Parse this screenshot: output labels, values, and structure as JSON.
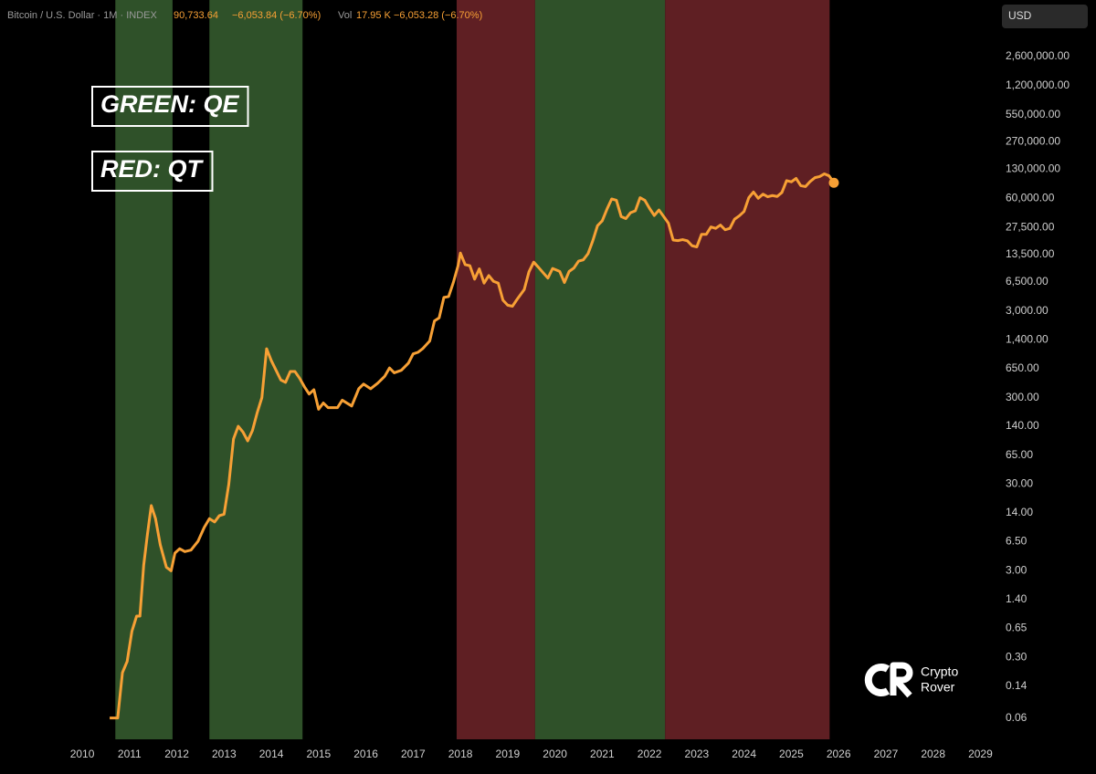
{
  "header": {
    "symbol": "Bitcoin / U.S. Dollar · 1M · INDEX",
    "price": "90,733.64",
    "change": "−6,053.84 (−6.70%)",
    "vol_label": "Vol",
    "vol": "17.95 K",
    "vol_change": "−6,053.28 (−6.70%)",
    "currency": "USD"
  },
  "logo": {
    "line1": "Crypto",
    "line2": "Rover"
  },
  "chart_data": {
    "type": "line",
    "log_scale": true,
    "grid": false,
    "annotations": [
      "GREEN: QE",
      "RED: QT"
    ],
    "regions": [
      {
        "start": 2010.7,
        "end": 2011.91,
        "color": "#2f5129"
      },
      {
        "start": 2012.69,
        "end": 2014.66,
        "color": "#2f5129"
      },
      {
        "start": 2017.92,
        "end": 2019.58,
        "color": "#5f1f23"
      },
      {
        "start": 2019.58,
        "end": 2022.33,
        "color": "#2f5129"
      },
      {
        "start": 2022.33,
        "end": 2025.81,
        "color": "#5f1f23"
      }
    ],
    "xlim": [
      2008.26,
      2029.32
    ],
    "xticks": [
      2010,
      2011,
      2012,
      2013,
      2014,
      2015,
      2016,
      2017,
      2018,
      2019,
      2020,
      2021,
      2022,
      2023,
      2024,
      2025,
      2026,
      2027,
      2028,
      2029
    ],
    "ylim": [
      0.034,
      11700000
    ],
    "yticks": [
      {
        "value": 2600000,
        "label": "2,600,000.00"
      },
      {
        "value": 1200000,
        "label": "1,200,000.00"
      },
      {
        "value": 550000,
        "label": "550,000.00"
      },
      {
        "value": 270000,
        "label": "270,000.00"
      },
      {
        "value": 130000,
        "label": "130,000.00"
      },
      {
        "value": 60000,
        "label": "60,000.00"
      },
      {
        "value": 27500,
        "label": "27,500.00"
      },
      {
        "value": 13500,
        "label": "13,500.00"
      },
      {
        "value": 6500,
        "label": "6,500.00"
      },
      {
        "value": 3000,
        "label": "3,000.00"
      },
      {
        "value": 1400,
        "label": "1,400.00"
      },
      {
        "value": 650,
        "label": "650.00"
      },
      {
        "value": 300,
        "label": "300.00"
      },
      {
        "value": 140,
        "label": "140.00"
      },
      {
        "value": 65,
        "label": "65.00"
      },
      {
        "value": 30,
        "label": "30.00"
      },
      {
        "value": 14,
        "label": "14.00"
      },
      {
        "value": 6.5,
        "label": "6.50"
      },
      {
        "value": 3,
        "label": "3.00"
      },
      {
        "value": 1.4,
        "label": "1.40"
      },
      {
        "value": 0.65,
        "label": "0.65"
      },
      {
        "value": 0.3,
        "label": "0.30"
      },
      {
        "value": 0.14,
        "label": "0.14"
      },
      0.06
    ],
    "x": [
      2010.58,
      2010.75,
      2010.85,
      2010.95,
      2011.05,
      2011.15,
      2011.22,
      2011.3,
      2011.38,
      2011.46,
      2011.55,
      2011.65,
      2011.78,
      2011.88,
      2011.96,
      2012.06,
      2012.17,
      2012.3,
      2012.45,
      2012.58,
      2012.69,
      2012.8,
      2012.9,
      2013.0,
      2013.1,
      2013.2,
      2013.3,
      2013.4,
      2013.5,
      2013.6,
      2013.7,
      2013.8,
      2013.9,
      2014.0,
      2014.1,
      2014.2,
      2014.3,
      2014.4,
      2014.5,
      2014.6,
      2014.7,
      2014.8,
      2014.9,
      2015.0,
      2015.1,
      2015.2,
      2015.4,
      2015.5,
      2015.7,
      2015.85,
      2015.95,
      2016.1,
      2016.25,
      2016.4,
      2016.5,
      2016.6,
      2016.75,
      2016.9,
      2017.0,
      2017.1,
      2017.2,
      2017.35,
      2017.45,
      2017.55,
      2017.65,
      2017.75,
      2017.85,
      2017.95,
      2018.0,
      2018.1,
      2018.2,
      2018.3,
      2018.4,
      2018.5,
      2018.6,
      2018.7,
      2018.8,
      2018.9,
      2019.0,
      2019.1,
      2019.2,
      2019.35,
      2019.45,
      2019.55,
      2019.65,
      2019.75,
      2019.85,
      2019.95,
      2020.1,
      2020.2,
      2020.3,
      2020.4,
      2020.5,
      2020.6,
      2020.7,
      2020.8,
      2020.9,
      2021.0,
      2021.1,
      2021.2,
      2021.3,
      2021.4,
      2021.5,
      2021.6,
      2021.7,
      2021.8,
      2021.9,
      2022.0,
      2022.1,
      2022.2,
      2022.3,
      2022.4,
      2022.5,
      2022.6,
      2022.7,
      2022.8,
      2022.9,
      2023.0,
      2023.1,
      2023.2,
      2023.3,
      2023.4,
      2023.5,
      2023.6,
      2023.7,
      2023.8,
      2023.9,
      2024.0,
      2024.1,
      2024.2,
      2024.3,
      2024.4,
      2024.5,
      2024.6,
      2024.7,
      2024.8,
      2024.9,
      2025.0,
      2025.1,
      2025.2,
      2025.3,
      2025.4,
      2025.5,
      2025.6,
      2025.7,
      2025.8,
      2025.9
    ],
    "series": [
      {
        "name": "Bitcoin / U.S. Dollar",
        "color": "#f7a035",
        "values": [
          0.06,
          0.06,
          0.2,
          0.27,
          0.6,
          0.9,
          0.9,
          3.5,
          8,
          17,
          12,
          6,
          3.3,
          3.0,
          4.8,
          5.4,
          5.0,
          5.2,
          6.6,
          9.5,
          12,
          11,
          13,
          13.5,
          30,
          100,
          140,
          120,
          95,
          125,
          200,
          300,
          1100,
          800,
          620,
          480,
          450,
          600,
          600,
          500,
          400,
          330,
          370,
          220,
          260,
          230,
          230,
          280,
          240,
          380,
          430,
          380,
          440,
          530,
          660,
          580,
          620,
          750,
          960,
          1000,
          1100,
          1350,
          2300,
          2500,
          4300,
          4400,
          6400,
          10000,
          14000,
          10300,
          10000,
          7000,
          9200,
          6300,
          7700,
          6600,
          6300,
          4000,
          3500,
          3400,
          4100,
          5300,
          8500,
          11000,
          9600,
          8300,
          7200,
          9300,
          8600,
          6400,
          8600,
          9400,
          11300,
          11700,
          13800,
          19400,
          29000,
          33000,
          45000,
          59000,
          57000,
          37000,
          35000,
          41000,
          43000,
          61000,
          57000,
          46000,
          38000,
          44000,
          37000,
          31000,
          19800,
          19500,
          20000,
          19400,
          17000,
          16500,
          23000,
          23000,
          28000,
          27000,
          29500,
          26000,
          27000,
          34500,
          37700,
          42300,
          61000,
          71000,
          60000,
          67000,
          62500,
          64600,
          63000,
          70000,
          96000,
          93000,
          102000,
          84000,
          82000,
          94000,
          104000,
          107000,
          115000,
          109000,
          90733.64
        ]
      }
    ]
  }
}
